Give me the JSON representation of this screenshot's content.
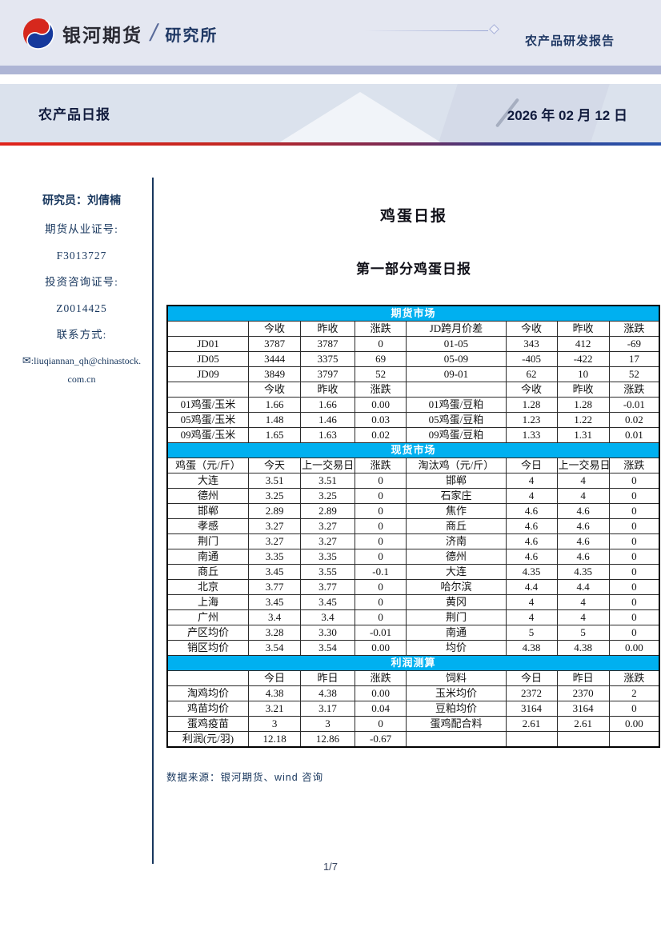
{
  "header": {
    "brand": "银河期货",
    "divider": "/",
    "dept": "研究所",
    "report_type": "农产品研发报告"
  },
  "banner": {
    "title": "农产品日报",
    "date": "2026 年 02 月 12 日"
  },
  "sidebar": {
    "researcher": "研究员：刘倩楠",
    "lines": [
      "期货从业证号:",
      "F3013727",
      "投资咨询证号:",
      "Z0014425",
      "联系方式:"
    ],
    "email_icon": "✉",
    "email_line1": ":liuqiannan_qh@chinastock.",
    "email_line2": "com.cn"
  },
  "main": {
    "title": "鸡蛋日报",
    "subtitle": "第一部分鸡蛋日报",
    "source": "数据来源：银河期货、wind 咨询",
    "page": "1/7"
  },
  "accent_colors": {
    "section_band": "#00b0f0",
    "navy_text": "#17365d",
    "gradient_left": "#e0241b",
    "gradient_right": "#2a55ae"
  },
  "tables": [
    {
      "section": "期货市场",
      "blocks": [
        {
          "header": [
            "",
            "今收",
            "昨收",
            "涨跌",
            "JD跨月价差",
            "今收",
            "昨收",
            "涨跌"
          ],
          "rows": [
            [
              "JD01",
              "3787",
              "3787",
              "0",
              "01-05",
              "343",
              "412",
              "-69"
            ],
            [
              "JD05",
              "3444",
              "3375",
              "69",
              "05-09",
              "-405",
              "-422",
              "17"
            ],
            [
              "JD09",
              "3849",
              "3797",
              "52",
              "09-01",
              "62",
              "10",
              "52"
            ]
          ]
        },
        {
          "header": [
            "",
            "今收",
            "昨收",
            "涨跌",
            "",
            "今收",
            "昨收",
            "涨跌"
          ],
          "rows": [
            [
              "01鸡蛋/玉米",
              "1.66",
              "1.66",
              "0.00",
              "01鸡蛋/豆粕",
              "1.28",
              "1.28",
              "-0.01"
            ],
            [
              "05鸡蛋/玉米",
              "1.48",
              "1.46",
              "0.03",
              "05鸡蛋/豆粕",
              "1.23",
              "1.22",
              "0.02"
            ],
            [
              "09鸡蛋/玉米",
              "1.65",
              "1.63",
              "0.02",
              "09鸡蛋/豆粕",
              "1.33",
              "1.31",
              "0.01"
            ]
          ]
        }
      ]
    },
    {
      "section": "现货市场",
      "blocks": [
        {
          "header": [
            "鸡蛋（元/斤）",
            "今天",
            "上一交易日",
            "涨跌",
            "淘汰鸡（元/斤）",
            "今日",
            "上一交易日",
            "涨跌"
          ],
          "rows": [
            [
              "大连",
              "3.51",
              "3.51",
              "0",
              "邯郸",
              "4",
              "4",
              "0"
            ],
            [
              "德州",
              "3.25",
              "3.25",
              "0",
              "石家庄",
              "4",
              "4",
              "0"
            ],
            [
              "邯郸",
              "2.89",
              "2.89",
              "0",
              "焦作",
              "4.6",
              "4.6",
              "0"
            ],
            [
              "孝感",
              "3.27",
              "3.27",
              "0",
              "商丘",
              "4.6",
              "4.6",
              "0"
            ],
            [
              "荆门",
              "3.27",
              "3.27",
              "0",
              "济南",
              "4.6",
              "4.6",
              "0"
            ],
            [
              "南通",
              "3.35",
              "3.35",
              "0",
              "德州",
              "4.6",
              "4.6",
              "0"
            ],
            [
              "商丘",
              "3.45",
              "3.55",
              "-0.1",
              "大连",
              "4.35",
              "4.35",
              "0"
            ],
            [
              "北京",
              "3.77",
              "3.77",
              "0",
              "哈尔滨",
              "4.4",
              "4.4",
              "0"
            ],
            [
              "上海",
              "3.45",
              "3.45",
              "0",
              "黄冈",
              "4",
              "4",
              "0"
            ],
            [
              "广州",
              "3.4",
              "3.4",
              "0",
              "荆门",
              "4",
              "4",
              "0"
            ],
            [
              "产区均价",
              "3.28",
              "3.30",
              "-0.01",
              "南通",
              "5",
              "5",
              "0"
            ],
            [
              "销区均价",
              "3.54",
              "3.54",
              "0.00",
              "均价",
              "4.38",
              "4.38",
              "0.00"
            ]
          ]
        }
      ]
    },
    {
      "section": "利润测算",
      "blocks": [
        {
          "header": [
            "",
            "今日",
            "昨日",
            "涨跌",
            "饲料",
            "今日",
            "昨日",
            "涨跌"
          ],
          "rows": [
            [
              "淘鸡均价",
              "4.38",
              "4.38",
              "0.00",
              "玉米均价",
              "2372",
              "2370",
              "2"
            ],
            [
              "鸡苗均价",
              "3.21",
              "3.17",
              "0.04",
              "豆粕均价",
              "3164",
              "3164",
              "0"
            ],
            [
              "蛋鸡疫苗",
              "3",
              "3",
              "0",
              "蛋鸡配合料",
              "2.61",
              "2.61",
              "0.00"
            ],
            [
              "利润(元/羽)",
              "12.18",
              "12.86",
              "-0.67",
              "",
              "",
              "",
              ""
            ]
          ]
        }
      ]
    }
  ],
  "table_col_widths": [
    "16.5%",
    "10.6%",
    "11%",
    "10.5%",
    "20.2%",
    "10.4%",
    "10.6%",
    "10.2%"
  ]
}
